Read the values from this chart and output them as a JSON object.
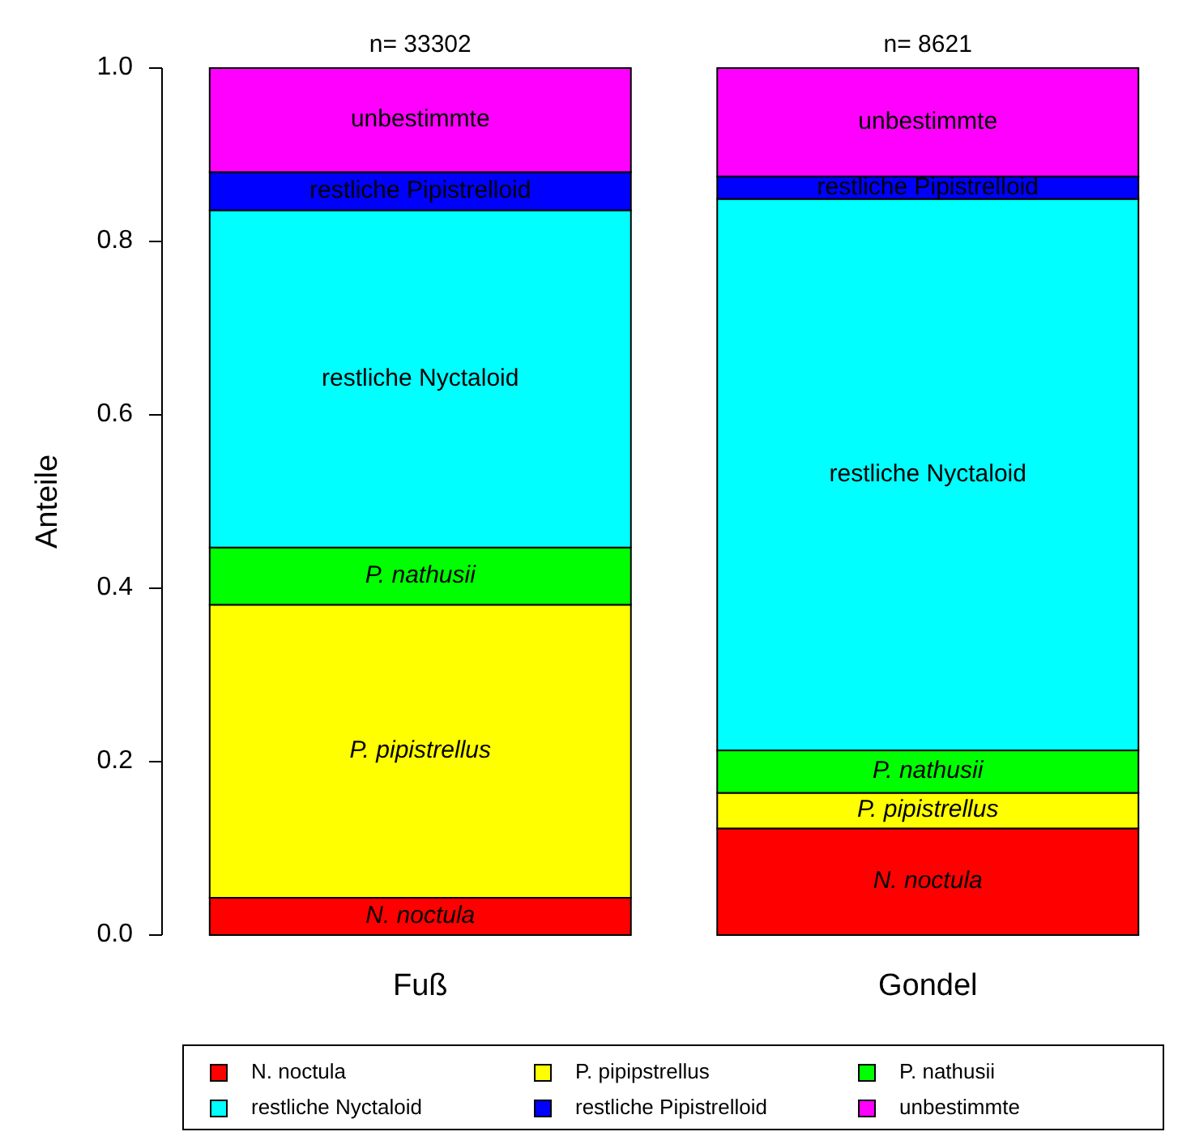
{
  "chart_data": {
    "type": "bar",
    "stacked": true,
    "ylabel": "Anteile",
    "categories": [
      "Fuß",
      "Gondel"
    ],
    "series": [
      {
        "name": "N. noctula",
        "color": "#ff0000",
        "values": [
          0.043,
          0.123
        ],
        "value_labels": [
          "N. noctula",
          "N. noctula"
        ]
      },
      {
        "name": "P. pipipstrellus",
        "color": "#ffff00",
        "values": [
          0.338,
          0.041
        ],
        "value_labels": [
          "P. pipistrellus",
          "P. pipistrellus"
        ]
      },
      {
        "name": "P. nathusii",
        "color": "#00ff00",
        "values": [
          0.066,
          0.049
        ],
        "value_labels": [
          "P. nathusii",
          "P. nathusii"
        ]
      },
      {
        "name": "restliche Nyctaloid",
        "color": "#00ffff",
        "values": [
          0.389,
          0.636
        ],
        "value_labels": [
          "restliche Nyctaloid",
          "restliche Nyctaloid"
        ]
      },
      {
        "name": "restliche Pipistrelloid",
        "color": "#0000ff",
        "values": [
          0.044,
          0.026
        ],
        "value_labels": [
          "restliche Pipistrelloid",
          "restliche Pipistrelloid"
        ]
      },
      {
        "name": "unbestimmte",
        "color": "#ff00ff",
        "values": [
          0.12,
          0.125
        ],
        "value_labels": [
          "unbestimmte",
          "unbestimmte"
        ]
      }
    ],
    "ylim": [
      0,
      1
    ],
    "yticks": [
      {
        "value": 0,
        "label": "0.0"
      },
      {
        "value": 0.2,
        "label": "0.2"
      },
      {
        "value": 0.4,
        "label": "0.4"
      },
      {
        "value": 0.6,
        "label": "0.6"
      },
      {
        "value": 0.8,
        "label": "0.8"
      },
      {
        "value": 1,
        "label": "1.0"
      }
    ],
    "grid": false,
    "legend": "bottom",
    "annotations": [
      {
        "text": "n= 33302",
        "x": "Fuß",
        "y": 1
      },
      {
        "text": "n= 8621",
        "x": "Gondel",
        "y": 1
      }
    ]
  }
}
